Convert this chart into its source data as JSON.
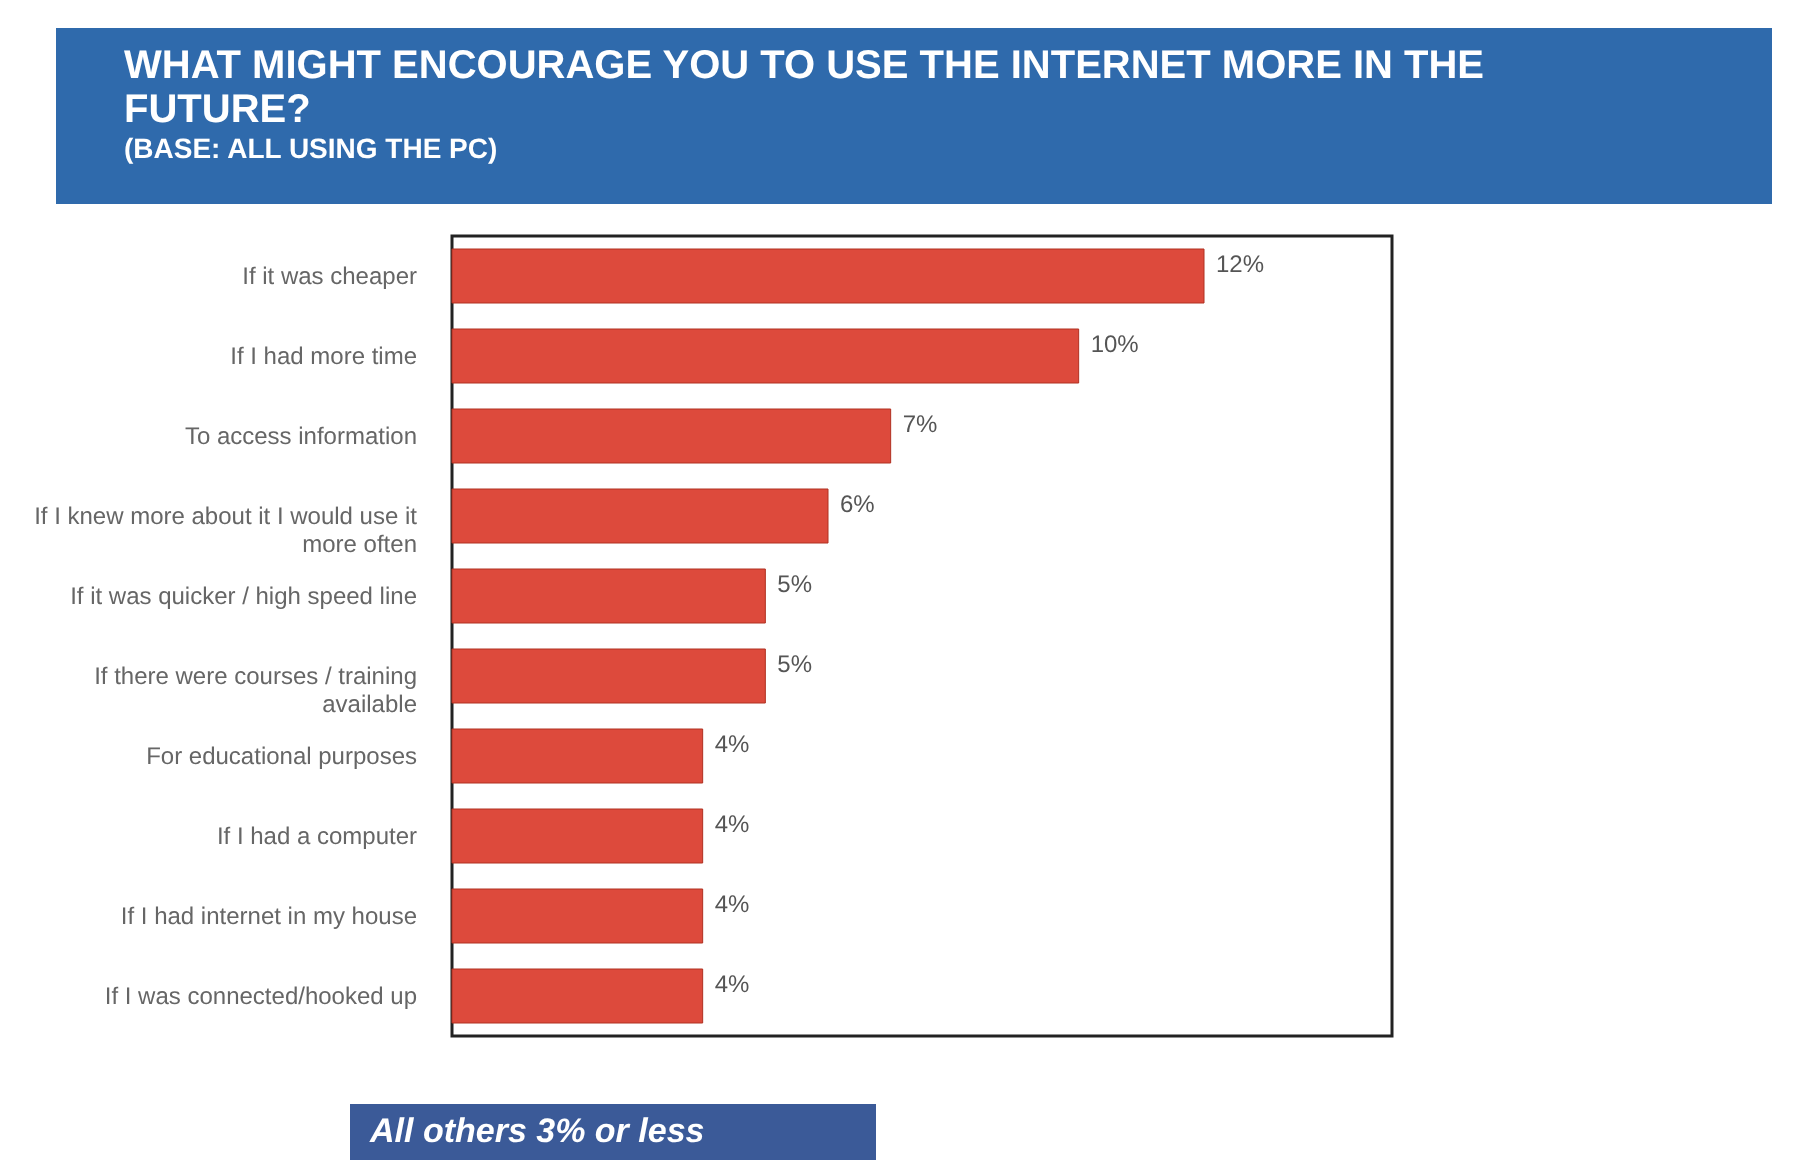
{
  "chart_data": {
    "type": "bar",
    "orientation": "horizontal",
    "title": "WHAT MIGHT ENCOURAGE YOU TO USE THE INTERNET MORE IN THE FUTURE?",
    "subtitle": "(BASE: ALL USING THE PC)",
    "categories": [
      "If it was cheaper",
      "If I had more time",
      "To access information",
      "If I knew more about it I would use it more often",
      "If it was quicker / high speed line",
      "If there were courses / training available",
      "For educational purposes",
      "If I had a computer",
      "If I had internet in my house",
      "If I was connected/hooked up"
    ],
    "values": [
      12,
      10,
      7,
      6,
      5,
      5,
      4,
      4,
      4,
      4
    ],
    "value_labels": [
      "12%",
      "10%",
      "7%",
      "6%",
      "5%",
      "5%",
      "4%",
      "4%",
      "4%",
      "4%"
    ],
    "color": "#dd4a3c",
    "xlim": [
      0,
      15
    ],
    "tick_labels": "y",
    "grid": false,
    "annotations": [
      "All others 3% or less"
    ]
  }
}
